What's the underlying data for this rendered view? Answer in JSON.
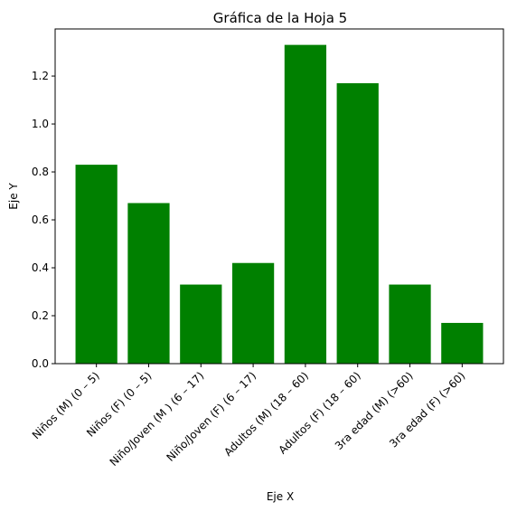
{
  "chart_data": {
    "type": "bar",
    "title": "Gráfica de la Hoja 5",
    "xlabel": "Eje X",
    "ylabel": "Eje Y",
    "categories": [
      "Niños (M) (0 – 5)",
      "Niños (F) (0 – 5)",
      "Niño/Joven (M ) (6 – 17)",
      "Niño/Joven (F) (6 – 17)",
      "Adultos (M) (18 – 60)",
      "Adultos (F) (18 – 60)",
      "3ra edad (M) (>60)",
      "3ra edad (F) (>60)"
    ],
    "values": [
      0.83,
      0.67,
      0.33,
      0.42,
      1.33,
      1.17,
      0.33,
      0.17
    ],
    "ylim": [
      0,
      1.3965
    ],
    "yticks": [
      "0.0",
      "0.2",
      "0.4",
      "0.6",
      "0.8",
      "1.0",
      "1.2"
    ],
    "bar_color": "#008000",
    "grid": false,
    "legend": "none"
  }
}
